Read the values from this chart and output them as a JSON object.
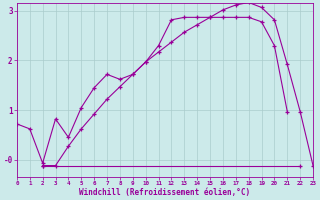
{
  "bg_color": "#cceaea",
  "grid_color": "#aacccc",
  "line_color": "#990099",
  "xlabel": "Windchill (Refroidissement éolien,°C)",
  "xlim": [
    0,
    23
  ],
  "ylim": [
    -0.35,
    3.15
  ],
  "yticks": [
    0.0,
    1.0,
    2.0,
    3.0
  ],
  "ytick_labels": [
    "-0",
    "1",
    "2",
    "3"
  ],
  "xticks": [
    0,
    1,
    2,
    3,
    4,
    5,
    6,
    7,
    8,
    9,
    10,
    11,
    12,
    13,
    14,
    15,
    16,
    17,
    18,
    19,
    20,
    21,
    22,
    23
  ],
  "line1_x": [
    0,
    1,
    2,
    3,
    4,
    5,
    6,
    7,
    8,
    9,
    10,
    11,
    12,
    13,
    14,
    15,
    16,
    17,
    18,
    19,
    20,
    21
  ],
  "line1_y": [
    0.72,
    0.62,
    -0.07,
    0.82,
    0.45,
    1.05,
    1.45,
    1.72,
    1.62,
    1.72,
    1.97,
    2.3,
    2.82,
    2.87,
    2.87,
    2.87,
    2.87,
    2.87,
    2.87,
    2.78,
    2.3,
    0.97
  ],
  "line2_x": [
    2,
    3,
    4,
    5,
    6,
    7,
    8,
    9,
    10,
    11,
    12,
    13,
    14,
    15,
    16,
    17,
    18,
    19,
    20,
    21,
    22,
    23
  ],
  "line2_y": [
    -0.12,
    -0.12,
    0.27,
    0.62,
    0.92,
    1.22,
    1.47,
    1.72,
    1.97,
    2.17,
    2.37,
    2.57,
    2.72,
    2.87,
    3.02,
    3.12,
    3.17,
    3.07,
    2.82,
    1.92,
    0.97,
    -0.12
  ],
  "line3_x": [
    2,
    22
  ],
  "line3_y": [
    -0.12,
    -0.12
  ]
}
